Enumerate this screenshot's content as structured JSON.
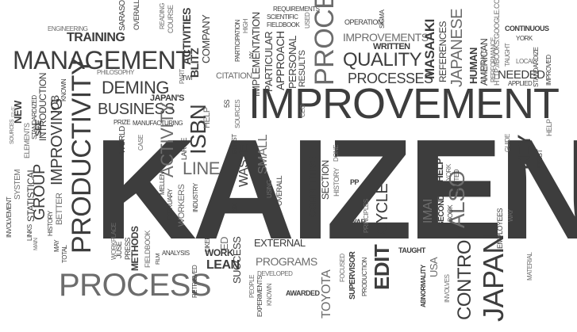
{
  "cloud": {
    "kaizen": "KAIZEN",
    "improvement": "IMPROVEMENT",
    "management": "MANAGEMENT",
    "process": "PROCESS",
    "productivity": "PRODUCTIVITY",
    "business": "BUSINESS",
    "deming": "DEMING",
    "activity": "ACTIVITY",
    "isbn": "ISBN",
    "training": "TRAINING",
    "quality": "QUALITY",
    "processes": "PROCESSES",
    "proce": "PROCE",
    "masaaki": "MASAAKI",
    "japanese": "JAPANESE",
    "improvements": "IMPROVEMENTS",
    "written": "WRITTEN",
    "references": "REFERENCES",
    "human": "HUMAN",
    "american": "AMERICAN",
    "key": "KEY",
    "japan": "JAPAN",
    "control": "CONTROL",
    "also": "ALSO",
    "cycle": "CYCLE",
    "edit": "EDIT",
    "toyota": "TOYOTA",
    "lean": "LEAN",
    "work": "WORK",
    "success": "SUCCESS",
    "methods": "METHODS",
    "group": "GROUP",
    "improving": "IMPROVING",
    "line": "LINE",
    "activities": "ACTIVITIES",
    "blitz": "BLITZ",
    "company": "COMPANY",
    "citation": "CITATION",
    "approach": "APPROACH",
    "implementation": "IMPLEMENTATION",
    "particular": "PARTICULAR",
    "personal": "PERSONAL",
    "results": "RESULTS",
    "scientific": "SCIENTIFIC",
    "fieldbook": "FIELDBOOK",
    "requirements": "REQUIREMENTS",
    "operation": "OPERATION",
    "sigma": "SIGMA",
    "continuous": "CONTINUOUS",
    "york": "YORK",
    "taught": "TAUGHT",
    "local": "LOCAL",
    "standardize": "STANDARDIZE",
    "needed": "NEEDED",
    "applied": "APPLIED",
    "improved": "IMPROVED",
    "performance": "PERFORMANCE",
    "illuminate": "ILLUMINATE",
    "google": "HTTP://BOOKS.GOOGLE.COM/",
    "sarasohn": "SARASOHN",
    "overall": "OVERALL",
    "reading": "READING",
    "course": "COURSE",
    "engineering": "ENGINEERING",
    "philosophy": "PHILOSOPHY",
    "part": "PART",
    "twi": "TWI",
    "japans": "JAPAN'S",
    "new": "NEW",
    "five": "FIVE",
    "sources": "SOURCES",
    "elements": "ELEMENTS",
    "standardized": "STANDARDIZED",
    "introduction": "INTRODUCTION",
    "job": "JOB",
    "known": "KNOWN",
    "see": "SEE",
    "system": "SYSTEM",
    "statistical": "STATISTICAL",
    "involvement": "INVOLVEMENT",
    "links": "LINKS",
    "better": "BETTER",
    "history": "HISTORY",
    "main": "MAIN",
    "may": "MAY",
    "total": "TOTAL",
    "prize": "PRIZE",
    "manufacturing": "MANUFACTURING",
    "world": "WORLD",
    "case": "CASE",
    "large": "LARGE",
    "help": "HELP",
    "five_s": "5S",
    "mellen": "MELLEN",
    "february": "FEBRUARY",
    "workers": "WORKERS",
    "industry": "INDUSTRY",
    "burst": "BURST",
    "waste": "WASTE",
    "small": "SMALL",
    "six": "SIX",
    "using": "USING",
    "overall2": "OVERALL",
    "competitive": "COMPETITIVE",
    "section": "SECTION",
    "history2": "HISTORY",
    "done": "DONE",
    "pp": "PP",
    "war": "WAR",
    "principles": "PRINCIPLES",
    "imai": "IMAI",
    "help2": "HELP",
    "second": "SECOND",
    "book": "BOOK",
    "limited": "LIMITED",
    "york2": "YORK",
    "employees": "EMPLOYEES",
    "way": "WAY",
    "guide": "GUIDE",
    "first": "FIRST",
    "material": "MATERIAL",
    "juse": "JUSE",
    "press": "PRESS",
    "workplace": "WORKPLACE",
    "fieldbook2": "FIELDBOOK",
    "film": "FILM",
    "analysis": "ANALYSIS",
    "liker": "LIKER",
    "ed": "ED",
    "retrieved": "RETRIEVED",
    "people": "PEOPLE",
    "experiments": "EXPERIMENTS",
    "known2": "KNOWN",
    "external": "EXTERNAL",
    "programs": "PROGRAMS",
    "developed": "DEVELOPED",
    "awarded": "AWARDED",
    "focused": "FOCUSED",
    "supervisor": "SUPERVISOR",
    "production": "PRODUCTION",
    "taught2": "TAUGHT",
    "usa": "USA",
    "abnormality": "ABNORMALITY",
    "involves": "INVOLVES",
    "participation": "PARTICIPATION",
    "high": "HIGH",
    "ny": "NY",
    "used": "USED",
    "ceo": "CEO",
    "sources2": "SOURCES",
    "help3": "HELP"
  }
}
